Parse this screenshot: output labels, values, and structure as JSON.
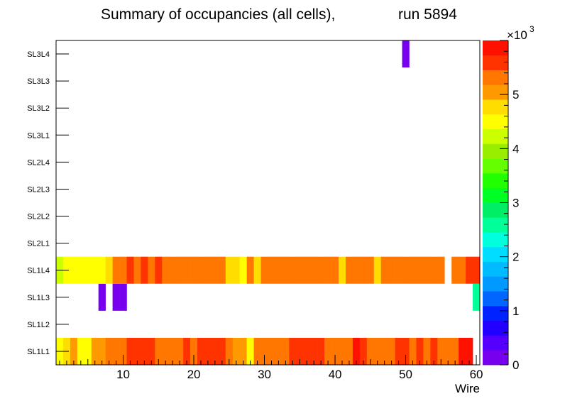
{
  "chart_data": {
    "type": "heatmap",
    "title": "Summary of occupancies (all cells),",
    "run_label": "run 5894",
    "xlabel": "Wire",
    "xlim": [
      0.5,
      60.5
    ],
    "x_ticks": [
      10,
      20,
      30,
      40,
      50,
      60
    ],
    "y_categories": [
      "SL1L1",
      "SL1L2",
      "SL1L3",
      "SL1L4",
      "SL2L1",
      "SL2L2",
      "SL2L3",
      "SL2L4",
      "SL3L1",
      "SL3L2",
      "SL3L3",
      "SL3L4"
    ],
    "z_range": [
      0,
      6000
    ],
    "z_ticks": [
      0,
      1,
      2,
      3,
      4,
      5
    ],
    "z_exponent_base": "×10",
    "z_exponent": "3",
    "palette": [
      "#7700ee",
      "#5500ff",
      "#2200ff",
      "#0022ff",
      "#0066ff",
      "#0099ff",
      "#00bbff",
      "#00ddff",
      "#00ffdd",
      "#00ff99",
      "#00ee66",
      "#00ff22",
      "#22ff00",
      "#66ff00",
      "#99ee00",
      "#ccff00",
      "#ffff00",
      "#ffdd00",
      "#ff9900",
      "#ff7700",
      "#ff3300",
      "#ff1100"
    ],
    "rows": [
      {
        "layer": "SL1L1",
        "values": [
          4400,
          4800,
          5000,
          4600,
          4600,
          5100,
          5100,
          5300,
          5300,
          5400,
          5700,
          5700,
          5700,
          5700,
          5200,
          5200,
          5200,
          5400,
          5700,
          5400,
          5700,
          5700,
          5700,
          5700,
          5300,
          5100,
          5100,
          4600,
          5300,
          5300,
          5300,
          5400,
          5300,
          5700,
          5700,
          5700,
          5700,
          5700,
          5400,
          5400,
          5400,
          5400,
          5800,
          5700,
          5400,
          5400,
          5400,
          5400,
          5700,
          5700,
          5300,
          5700,
          5400,
          5700,
          5400,
          5400,
          5400,
          5800,
          5800,
          0
        ]
      },
      {
        "layer": "SL1L2",
        "values": [
          0,
          0,
          0,
          0,
          0,
          0,
          0,
          0,
          0,
          0,
          0,
          0,
          0,
          0,
          0,
          0,
          0,
          0,
          0,
          0,
          0,
          0,
          0,
          0,
          0,
          0,
          0,
          0,
          0,
          0,
          0,
          0,
          0,
          0,
          0,
          0,
          0,
          0,
          0,
          0,
          0,
          0,
          0,
          0,
          0,
          0,
          0,
          0,
          0,
          0,
          0,
          0,
          0,
          0,
          0,
          0,
          0,
          0,
          0,
          0
        ]
      },
      {
        "layer": "SL1L3",
        "values": [
          0,
          0,
          0,
          0,
          0,
          0,
          200,
          0,
          200,
          200,
          0,
          0,
          0,
          0,
          0,
          0,
          0,
          0,
          0,
          0,
          0,
          0,
          0,
          0,
          0,
          0,
          0,
          0,
          0,
          0,
          0,
          0,
          0,
          0,
          0,
          0,
          0,
          0,
          0,
          0,
          0,
          0,
          0,
          0,
          0,
          0,
          0,
          0,
          0,
          0,
          0,
          0,
          0,
          0,
          0,
          0,
          0,
          0,
          0,
          2700
        ]
      },
      {
        "layer": "SL1L4",
        "values": [
          4200,
          4500,
          4500,
          4500,
          4500,
          4500,
          4500,
          4800,
          5300,
          5300,
          5700,
          5400,
          5700,
          5300,
          5700,
          5400,
          5400,
          5400,
          5400,
          5400,
          5400,
          5400,
          5400,
          5400,
          4800,
          4800,
          4600,
          5300,
          4800,
          5300,
          5300,
          5300,
          5300,
          5400,
          5400,
          5400,
          5400,
          5300,
          5300,
          5300,
          4800,
          5300,
          5300,
          5400,
          5400,
          4800,
          5200,
          5200,
          5200,
          5200,
          5200,
          5200,
          5200,
          5200,
          5200,
          0,
          5300,
          5400,
          5700,
          5700
        ]
      },
      {
        "layer": "SL2L1",
        "values": [
          0,
          0,
          0,
          0,
          0,
          0,
          0,
          0,
          0,
          0,
          0,
          0,
          0,
          0,
          0,
          0,
          0,
          0,
          0,
          0,
          0,
          0,
          0,
          0,
          0,
          0,
          0,
          0,
          0,
          0,
          0,
          0,
          0,
          0,
          0,
          0,
          0,
          0,
          0,
          0,
          0,
          0,
          0,
          0,
          0,
          0,
          0,
          0,
          0,
          0,
          0,
          0,
          0,
          0,
          0,
          0,
          0,
          0,
          0,
          0
        ]
      },
      {
        "layer": "SL2L2",
        "values": [
          0,
          0,
          0,
          0,
          0,
          0,
          0,
          0,
          0,
          0,
          0,
          0,
          0,
          0,
          0,
          0,
          0,
          0,
          0,
          0,
          0,
          0,
          0,
          0,
          0,
          0,
          0,
          0,
          0,
          0,
          0,
          0,
          0,
          0,
          0,
          0,
          0,
          0,
          0,
          0,
          0,
          0,
          0,
          0,
          0,
          0,
          0,
          0,
          0,
          0,
          0,
          0,
          0,
          0,
          0,
          0,
          0,
          0,
          0,
          0
        ]
      },
      {
        "layer": "SL2L3",
        "values": [
          0,
          0,
          0,
          0,
          0,
          0,
          0,
          0,
          0,
          0,
          0,
          0,
          0,
          0,
          0,
          0,
          0,
          0,
          0,
          0,
          0,
          0,
          0,
          0,
          0,
          0,
          0,
          0,
          0,
          0,
          0,
          0,
          0,
          0,
          0,
          0,
          0,
          0,
          0,
          0,
          0,
          0,
          0,
          0,
          0,
          0,
          0,
          0,
          0,
          0,
          0,
          0,
          0,
          0,
          0,
          0,
          0,
          0,
          0,
          0
        ]
      },
      {
        "layer": "SL2L4",
        "values": [
          0,
          0,
          0,
          0,
          0,
          0,
          0,
          0,
          0,
          0,
          0,
          0,
          0,
          0,
          0,
          0,
          0,
          0,
          0,
          0,
          0,
          0,
          0,
          0,
          0,
          0,
          0,
          0,
          0,
          0,
          0,
          0,
          0,
          0,
          0,
          0,
          0,
          0,
          0,
          0,
          0,
          0,
          0,
          0,
          0,
          0,
          0,
          0,
          0,
          0,
          0,
          0,
          0,
          0,
          0,
          0,
          0,
          0,
          0,
          0
        ]
      },
      {
        "layer": "SL3L1",
        "values": [
          0,
          0,
          0,
          0,
          0,
          0,
          0,
          0,
          0,
          0,
          0,
          0,
          0,
          0,
          0,
          0,
          0,
          0,
          0,
          0,
          0,
          0,
          0,
          0,
          0,
          0,
          0,
          0,
          0,
          0,
          0,
          0,
          0,
          0,
          0,
          0,
          0,
          0,
          0,
          0,
          0,
          0,
          0,
          0,
          0,
          0,
          0,
          0,
          0,
          0,
          0,
          0,
          0,
          0,
          0,
          0,
          0,
          0,
          0,
          0
        ]
      },
      {
        "layer": "SL3L2",
        "values": [
          0,
          0,
          0,
          0,
          0,
          0,
          0,
          0,
          0,
          0,
          0,
          0,
          0,
          0,
          0,
          0,
          0,
          0,
          0,
          0,
          0,
          0,
          0,
          0,
          0,
          0,
          0,
          0,
          0,
          0,
          0,
          0,
          0,
          0,
          0,
          0,
          0,
          0,
          0,
          0,
          0,
          0,
          0,
          0,
          0,
          0,
          0,
          0,
          0,
          0,
          0,
          0,
          0,
          0,
          0,
          0,
          0,
          0,
          0,
          0
        ]
      },
      {
        "layer": "SL3L3",
        "values": [
          0,
          0,
          0,
          0,
          0,
          0,
          0,
          0,
          0,
          0,
          0,
          0,
          0,
          0,
          0,
          0,
          0,
          0,
          0,
          0,
          0,
          0,
          0,
          0,
          0,
          0,
          0,
          0,
          0,
          0,
          0,
          0,
          0,
          0,
          0,
          0,
          0,
          0,
          0,
          0,
          0,
          0,
          0,
          0,
          0,
          0,
          0,
          0,
          0,
          0,
          0,
          0,
          0,
          0,
          0,
          0,
          0,
          0,
          0,
          0
        ]
      },
      {
        "layer": "SL3L4",
        "values": [
          0,
          0,
          0,
          0,
          0,
          0,
          0,
          0,
          0,
          0,
          0,
          0,
          0,
          0,
          0,
          0,
          0,
          0,
          0,
          0,
          0,
          0,
          0,
          0,
          0,
          0,
          0,
          0,
          0,
          0,
          0,
          0,
          0,
          0,
          0,
          0,
          0,
          0,
          0,
          0,
          0,
          0,
          0,
          0,
          0,
          0,
          0,
          0,
          0,
          200,
          0,
          0,
          0,
          0,
          0,
          0,
          0,
          0,
          0,
          0
        ]
      }
    ]
  }
}
